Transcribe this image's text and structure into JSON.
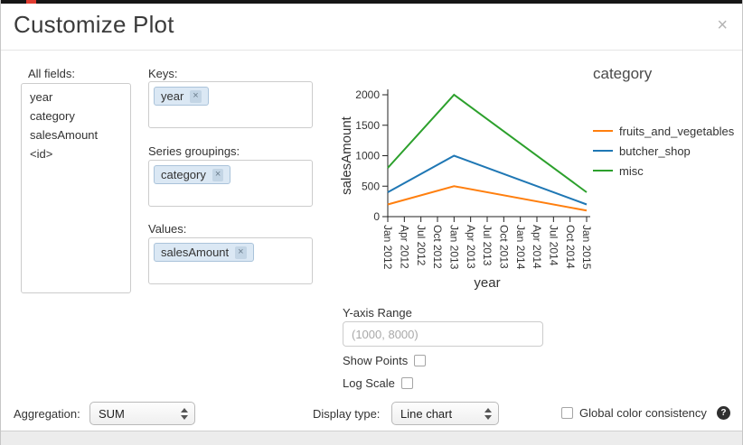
{
  "dialog": {
    "title": "Customize Plot",
    "close": "×"
  },
  "all_fields": {
    "label": "All fields:",
    "items": [
      "year",
      "category",
      "salesAmount",
      "<id>"
    ]
  },
  "pickers": {
    "keys": {
      "label": "Keys:",
      "tags": [
        "year"
      ]
    },
    "series_groupings": {
      "label": "Series groupings:",
      "tags": [
        "category"
      ]
    },
    "values": {
      "label": "Values:",
      "tags": [
        "salesAmount"
      ]
    }
  },
  "controls": {
    "y_axis_range_label": "Y-axis Range",
    "y_axis_range_placeholder": "(1000, 8000)",
    "show_points_label": "Show Points",
    "show_points_checked": false,
    "log_scale_label": "Log Scale",
    "log_scale_checked": false,
    "aggregation_label": "Aggregation:",
    "aggregation_value": "SUM",
    "display_type_label": "Display type:",
    "display_type_value": "Line chart",
    "global_color_label": "Global color consistency",
    "global_color_checked": false,
    "help_icon": "?"
  },
  "chart_data": {
    "type": "line",
    "xlabel": "year",
    "ylabel": "salesAmount",
    "legend_title": "category",
    "legend_position": "right",
    "grid": false,
    "x_ticks": [
      "Jan 2012",
      "Apr 2012",
      "Jul 2012",
      "Oct 2012",
      "Jan 2013",
      "Apr 2013",
      "Jul 2013",
      "Oct 2013",
      "Jan 2014",
      "Apr 2014",
      "Jul 2014",
      "Oct 2014",
      "Jan 2015"
    ],
    "y_ticks": [
      0,
      500,
      1000,
      1500,
      2000
    ],
    "ylim": [
      0,
      2000
    ],
    "series": [
      {
        "name": "fruits_and_vegetables",
        "color": "#ff7f0e",
        "points": [
          {
            "x": "Jan 2012",
            "y": 200
          },
          {
            "x": "Jan 2013",
            "y": 500
          },
          {
            "x": "Jan 2015",
            "y": 100
          }
        ]
      },
      {
        "name": "butcher_shop",
        "color": "#1f77b4",
        "points": [
          {
            "x": "Jan 2012",
            "y": 400
          },
          {
            "x": "Jan 2013",
            "y": 1000
          },
          {
            "x": "Jan 2015",
            "y": 200
          }
        ]
      },
      {
        "name": "misc",
        "color": "#2ca02c",
        "points": [
          {
            "x": "Jan 2012",
            "y": 800
          },
          {
            "x": "Jan 2013",
            "y": 2000
          },
          {
            "x": "Jan 2015",
            "y": 400
          }
        ]
      }
    ]
  }
}
